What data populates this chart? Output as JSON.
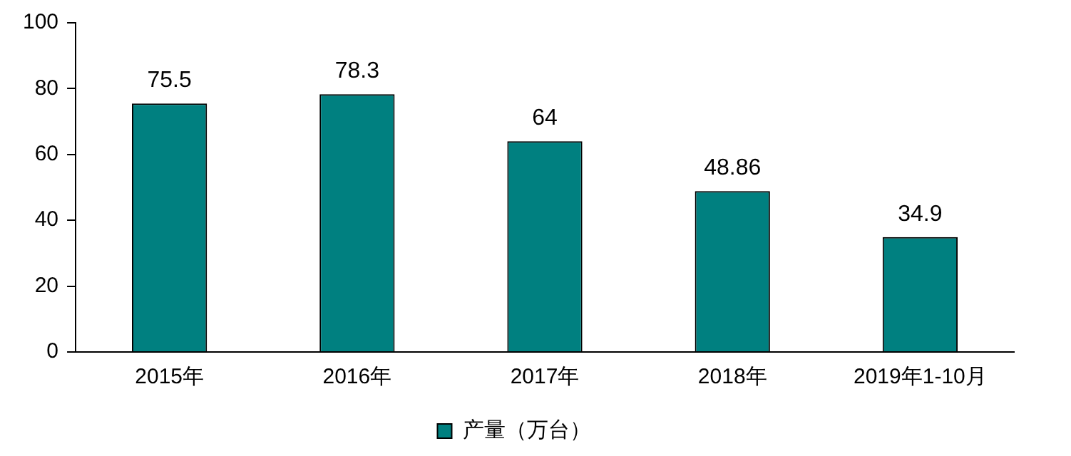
{
  "chart_data": {
    "type": "bar",
    "categories": [
      "2015年",
      "2016年",
      "2017年",
      "2018年",
      "2019年1-10月"
    ],
    "series": [
      {
        "name": "产量（万台）",
        "color": "#008080",
        "values": [
          75.5,
          78.3,
          64,
          48.86,
          34.9
        ]
      }
    ],
    "ylim": [
      0,
      100
    ],
    "yticks": [
      0,
      20,
      40,
      60,
      80,
      100
    ],
    "grid": false,
    "legend": "bottom",
    "data_labels": true
  }
}
